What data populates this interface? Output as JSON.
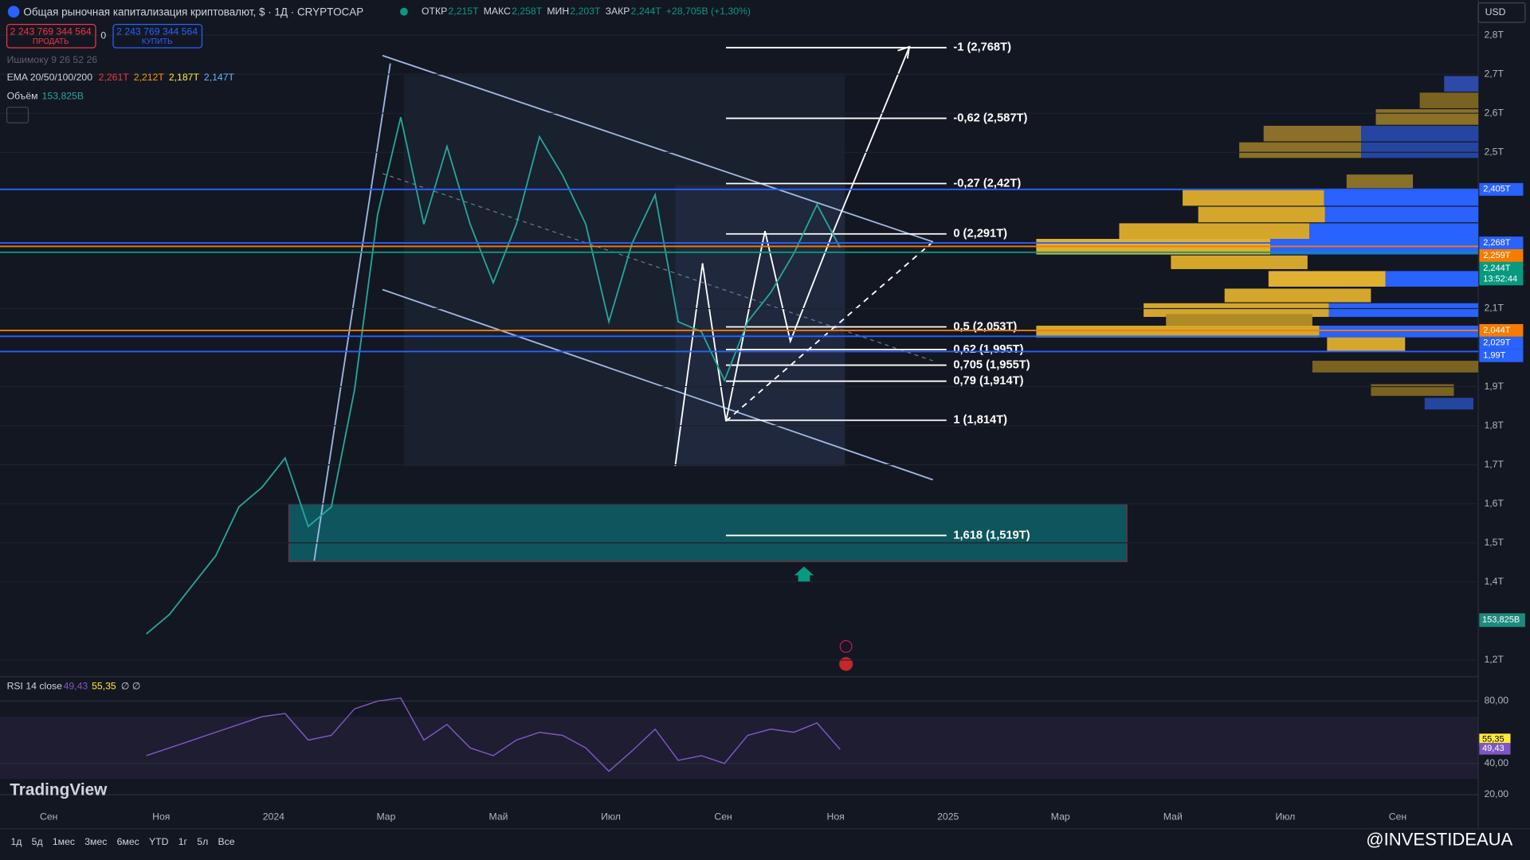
{
  "header": {
    "title": "Общая рыночная капитализация криптовалют, $ · 1Д · CRYPTOCAP",
    "ohlc": [
      {
        "key": "ОТКР",
        "value": "2,215T"
      },
      {
        "key": "МАКС",
        "value": "2,258T"
      },
      {
        "key": "МИН",
        "value": "2,203T"
      },
      {
        "key": "ЗАКР",
        "value": "2,244T"
      }
    ],
    "change": "+28,705B (+1,30%)"
  },
  "trade": {
    "sell_price": "2 243 769 344 564",
    "sell_label": "ПРОДАТЬ",
    "spread": "0",
    "buy_price": "2 243 769 344 564",
    "buy_label": "КУПИТЬ"
  },
  "indicators": {
    "ichimoku": "Ишимоку 9 26 52 26",
    "ema_label": "EMA 20/50/100/200",
    "ema_values": [
      "2,261T",
      "2,212T",
      "2,187T",
      "2,147T"
    ],
    "volume_label": "Объём",
    "volume_value": "153,825B"
  },
  "price_axis": {
    "currency": "USD",
    "ticks": [
      {
        "value": 2.8,
        "label": "2,8T"
      },
      {
        "value": 2.7,
        "label": "2,7T"
      },
      {
        "value": 2.6,
        "label": "2,6T"
      },
      {
        "value": 2.5,
        "label": "2,5T"
      },
      {
        "value": 2.1,
        "label": "2,1T"
      },
      {
        "value": 1.9,
        "label": "1,9T"
      },
      {
        "value": 1.8,
        "label": "1,8T"
      },
      {
        "value": 1.7,
        "label": "1,7T"
      },
      {
        "value": 1.6,
        "label": "1,6T"
      },
      {
        "value": 1.5,
        "label": "1,5T"
      },
      {
        "value": 1.4,
        "label": "1,4T"
      },
      {
        "value": 1.2,
        "label": "1,2T"
      }
    ]
  },
  "price_lines": [
    {
      "value": 2.405,
      "label": "2,405T",
      "color": "#2962ff"
    },
    {
      "value": 2.268,
      "label": "2,268T",
      "color": "#2962ff"
    },
    {
      "value": 2.259,
      "label": "2,259T",
      "color": "#f57c00"
    },
    {
      "value": 2.244,
      "label": "2,244T",
      "color": "#089981",
      "countdown": "13:52:44"
    },
    {
      "value": 2.044,
      "label": "2,044T",
      "color": "#f57c00"
    },
    {
      "value": 2.029,
      "label": "2,029T",
      "color": "#2962ff"
    },
    {
      "value": 1.99,
      "label": "1,99T",
      "color": "#2962ff"
    }
  ],
  "volume_badge": "153,825B",
  "fib_levels": [
    {
      "value": 2.768,
      "label": "-1 (2,768T)"
    },
    {
      "value": 2.587,
      "label": "-0,62 (2,587T)"
    },
    {
      "value": 2.42,
      "label": "-0,27 (2,42T)"
    },
    {
      "value": 2.291,
      "label": "0 (2,291T)"
    },
    {
      "value": 2.053,
      "label": "0,5 (2,053T)"
    },
    {
      "value": 1.995,
      "label": "0,62 (1,995T)"
    },
    {
      "value": 1.955,
      "label": "0,705 (1,955T)"
    },
    {
      "value": 1.914,
      "label": "0,79 (1,914T)"
    },
    {
      "value": 1.814,
      "label": "1 (1,814T)"
    },
    {
      "value": 1.519,
      "label": "1,618 (1,519T)"
    }
  ],
  "price_closes": [
    1.267,
    1.317,
    1.392,
    1.467,
    1.592,
    1.642,
    1.717,
    1.542,
    1.592,
    1.891,
    2.341,
    2.59,
    2.316,
    2.515,
    2.316,
    2.166,
    2.316,
    2.54,
    2.441,
    2.316,
    2.066,
    2.266,
    2.391,
    2.066,
    2.041,
    1.916,
    2.066,
    2.141,
    2.241,
    2.366,
    2.256
  ],
  "time_axis": [
    "Сен",
    "Ноя",
    "2024",
    "Мар",
    "Май",
    "Июл",
    "Сен",
    "Ноя",
    "2025",
    "Мар",
    "Май",
    "Июл",
    "Сен"
  ],
  "rsi": {
    "label": "RSI 14 close",
    "value": {
      "value": 49.43,
      "label": "49,43"
    },
    "ma": {
      "value": 55.35,
      "label": "55,35"
    },
    "extra": "∅ ∅",
    "ticks": [
      {
        "value": 80,
        "label": "80,00"
      },
      {
        "value": 40,
        "label": "40,00"
      },
      {
        "value": 20,
        "label": "20,00"
      }
    ],
    "values": [
      45,
      50,
      55,
      60,
      65,
      70,
      72,
      55,
      58,
      75,
      80,
      82,
      55,
      65,
      50,
      45,
      55,
      60,
      58,
      50,
      35,
      48,
      62,
      42,
      45,
      40,
      58,
      62,
      60,
      66,
      49
    ]
  },
  "toolbar": {
    "ranges": [
      "1д",
      "5д",
      "1мес",
      "3мес",
      "6мес",
      "YTD",
      "1г",
      "5л",
      "Все"
    ]
  },
  "watermark": "TradingView",
  "credit": "@INVESTIDEAUA"
}
